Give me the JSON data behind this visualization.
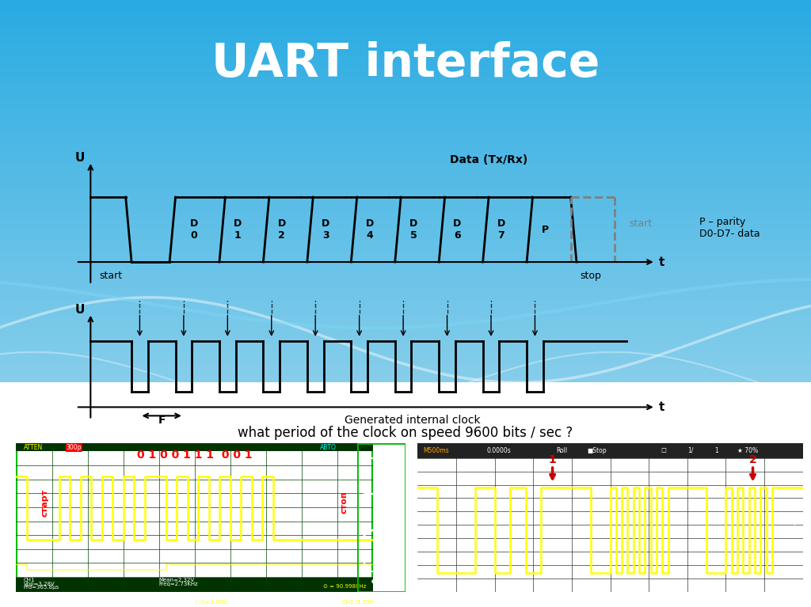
{
  "title": "UART interface",
  "title_color": "white",
  "title_fontsize": 42,
  "bg_top_color": "#29ABE2",
  "question": "what period of the clock on speed 9600 bits / sec ?",
  "parity_label": "P – parity\nD0-D7- data",
  "data_label": "Data (Tx/Rx)",
  "bit_labels": [
    "D\n0",
    "D\n1",
    "D\n2",
    "D\n3",
    "D\n4",
    "D\n5",
    "D\n6",
    "D\n7",
    "P"
  ],
  "F_label": "F",
  "clock_label": "Generated internal clock",
  "start_label": "start",
  "stop_label": "stop",
  "t_label": "t",
  "U_label": "U"
}
